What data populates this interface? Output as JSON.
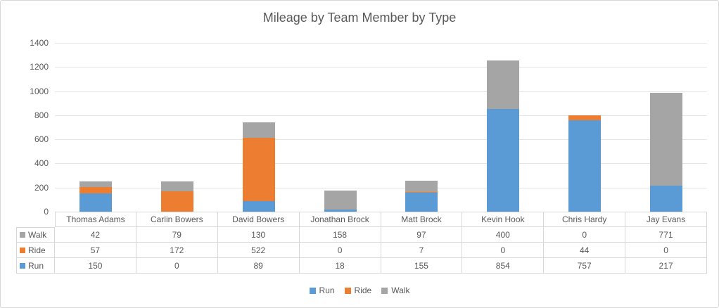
{
  "chart_data": {
    "type": "bar",
    "stacked": true,
    "title": "Mileage by Team Member by Type",
    "categories": [
      "Thomas Adams",
      "Carlin Bowers",
      "David Bowers",
      "Jonathan Brock",
      "Matt Brock",
      "Kevin Hook",
      "Chris Hardy",
      "Jay Evans"
    ],
    "series": [
      {
        "name": "Run",
        "color": "#5B9BD5",
        "values": [
          150,
          0,
          89,
          18,
          155,
          854,
          757,
          217
        ]
      },
      {
        "name": "Ride",
        "color": "#ED7D31",
        "values": [
          57,
          172,
          522,
          0,
          7,
          0,
          44,
          0
        ]
      },
      {
        "name": "Walk",
        "color": "#A5A5A5",
        "values": [
          42,
          79,
          130,
          158,
          97,
          400,
          0,
          771
        ]
      }
    ],
    "xlabel": "",
    "ylabel": "",
    "ylim": [
      0,
      1400
    ],
    "ytick_step": 200,
    "yticks": [
      "0",
      "200",
      "400",
      "600",
      "800",
      "1000",
      "1200",
      "1400"
    ],
    "grid": true,
    "legend_position": "bottom",
    "legend_items": [
      "Run",
      "Ride",
      "Walk"
    ]
  },
  "data_table": {
    "rows": [
      {
        "label": "Walk",
        "values": [
          "42",
          "79",
          "130",
          "158",
          "97",
          "400",
          "0",
          "771"
        ]
      },
      {
        "label": "Ride",
        "values": [
          "57",
          "172",
          "522",
          "0",
          "7",
          "0",
          "44",
          "0"
        ]
      },
      {
        "label": "Run",
        "values": [
          "150",
          "0",
          "89",
          "18",
          "155",
          "854",
          "757",
          "217"
        ]
      }
    ]
  },
  "colors": {
    "run": "#5B9BD5",
    "ride": "#ED7D31",
    "walk": "#A5A5A5",
    "text": "#595959",
    "gridline": "#E4E4E4",
    "border": "#D7D7D7"
  }
}
